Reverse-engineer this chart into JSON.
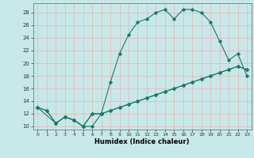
{
  "title": "",
  "xlabel": "Humidex (Indice chaleur)",
  "ylabel": "",
  "bg_color": "#c8e8e8",
  "plot_bg_color": "#c8e8e8",
  "grid_color": "#e8b0b0",
  "line_color": "#1a7a6a",
  "xlim": [
    -0.5,
    23.5
  ],
  "ylim": [
    9.5,
    29.5
  ],
  "xticks": [
    0,
    1,
    2,
    3,
    4,
    5,
    6,
    7,
    8,
    9,
    10,
    11,
    12,
    13,
    14,
    15,
    16,
    17,
    18,
    19,
    20,
    21,
    22,
    23
  ],
  "yticks": [
    10,
    12,
    14,
    16,
    18,
    20,
    22,
    24,
    26,
    28
  ],
  "series": [
    {
      "x": [
        0,
        1,
        2,
        3,
        4,
        5,
        6,
        7,
        8,
        9,
        10,
        11,
        12,
        13,
        14,
        15,
        16,
        17,
        18,
        19,
        20,
        21,
        22,
        23
      ],
      "y": [
        13,
        12.5,
        10.5,
        11.5,
        11,
        10,
        10,
        12,
        17,
        21.5,
        24.5,
        26.5,
        27,
        28,
        28.5,
        27,
        28.5,
        28.5,
        28,
        26.5,
        23.5,
        20.5,
        21.5,
        18
      ]
    },
    {
      "x": [
        0,
        1,
        2,
        3,
        4,
        5,
        6,
        7,
        8,
        9,
        10,
        11,
        12,
        13,
        14,
        15,
        16,
        17,
        18,
        19,
        20,
        21,
        22,
        23
      ],
      "y": [
        13,
        12.5,
        10.5,
        11.5,
        11,
        10,
        12,
        12,
        12.5,
        13,
        13.5,
        14,
        14.5,
        15,
        15.5,
        16,
        16.5,
        17,
        17.5,
        18,
        18.5,
        19,
        19.5,
        19
      ]
    },
    {
      "x": [
        0,
        2,
        3,
        4,
        5,
        6,
        7,
        8,
        9,
        10,
        11,
        12,
        13,
        14,
        15,
        16,
        17,
        18,
        19,
        20,
        21,
        22,
        23
      ],
      "y": [
        13,
        10.5,
        11.5,
        11,
        10,
        12,
        12,
        12.5,
        13,
        13.5,
        14,
        14.5,
        15,
        15.5,
        16,
        16.5,
        17,
        17.5,
        18,
        18.5,
        19,
        19.5,
        19
      ]
    }
  ]
}
